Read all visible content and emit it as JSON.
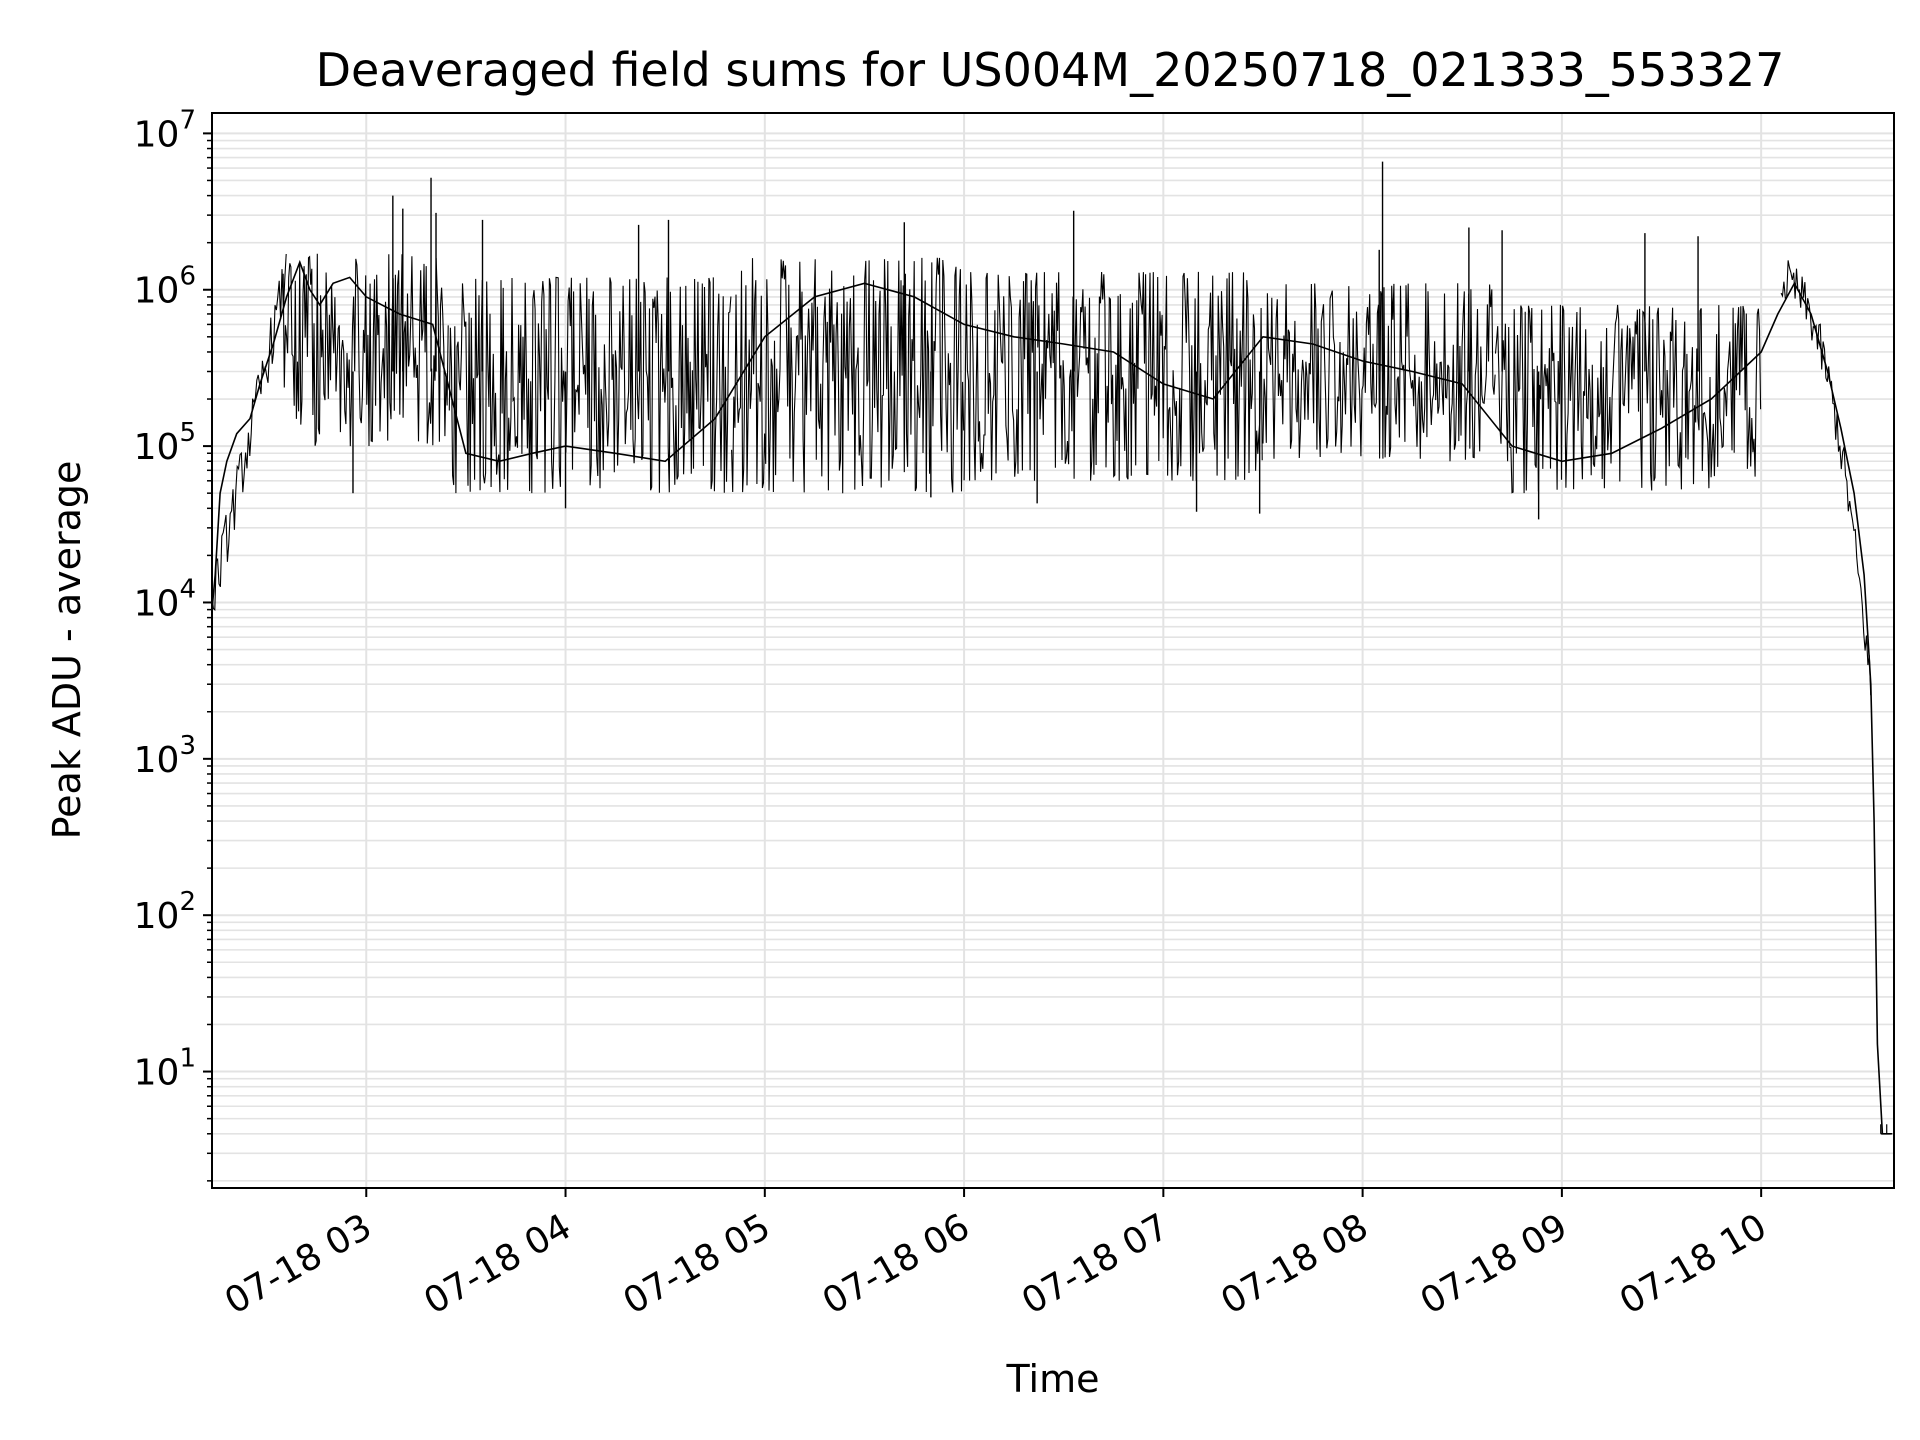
{
  "chart_data": {
    "type": "line",
    "title": "Deaveraged field sums for US004M_20250718_021333_553327",
    "xlabel": "Time",
    "ylabel": "Peak ADU - average",
    "xscale": "time",
    "yscale": "log",
    "xlim": [
      "2025-07-18T02:13:33",
      "2025-07-18T10:40:00"
    ],
    "ylim": [
      1.8,
      13500000
    ],
    "grid": true,
    "line_color": "#000000",
    "x_ticks": [
      {
        "t": "2025-07-18T03:00",
        "label": "07-18 03"
      },
      {
        "t": "2025-07-18T04:00",
        "label": "07-18 04"
      },
      {
        "t": "2025-07-18T05:00",
        "label": "07-18 05"
      },
      {
        "t": "2025-07-18T06:00",
        "label": "07-18 06"
      },
      {
        "t": "2025-07-18T07:00",
        "label": "07-18 07"
      },
      {
        "t": "2025-07-18T08:00",
        "label": "07-18 08"
      },
      {
        "t": "2025-07-18T09:00",
        "label": "07-18 09"
      },
      {
        "t": "2025-07-18T10:00",
        "label": "07-18 10"
      }
    ],
    "y_ticks": [
      {
        "value": 10,
        "base": "10",
        "exp": "1"
      },
      {
        "value": 100,
        "base": "10",
        "exp": "2"
      },
      {
        "value": 1000,
        "base": "10",
        "exp": "3"
      },
      {
        "value": 10000,
        "base": "10",
        "exp": "4"
      },
      {
        "value": 100000,
        "base": "10",
        "exp": "5"
      },
      {
        "value": 1000000,
        "base": "10",
        "exp": "6"
      },
      {
        "value": 10000000,
        "base": "10",
        "exp": "7"
      }
    ],
    "series": [
      {
        "x": [
          "2025-07-18T02:13:33",
          "2025-07-18T02:14:30",
          "2025-07-18T02:16:00",
          "2025-07-18T02:18:00",
          "2025-07-18T02:21:00",
          "2025-07-18T02:25:00",
          "2025-07-18T02:28:00",
          "2025-07-18T02:32:00",
          "2025-07-18T02:36:00",
          "2025-07-18T02:40:00",
          "2025-07-18T02:43:00",
          "2025-07-18T02:46:00",
          "2025-07-18T02:50:00",
          "2025-07-18T02:55:00",
          "2025-07-18T03:00:00",
          "2025-07-18T03:10:00",
          "2025-07-18T03:20:00",
          "2025-07-18T03:30:00",
          "2025-07-18T03:40:00",
          "2025-07-18T03:50:00",
          "2025-07-18T04:00:00",
          "2025-07-18T04:15:00",
          "2025-07-18T04:30:00",
          "2025-07-18T04:45:00",
          "2025-07-18T05:00:00",
          "2025-07-18T05:15:00",
          "2025-07-18T05:30:00",
          "2025-07-18T05:45:00",
          "2025-07-18T06:00:00",
          "2025-07-18T06:15:00",
          "2025-07-18T06:30:00",
          "2025-07-18T06:45:00",
          "2025-07-18T07:00:00",
          "2025-07-18T07:15:00",
          "2025-07-18T07:30:00",
          "2025-07-18T07:45:00",
          "2025-07-18T08:00:00",
          "2025-07-18T08:15:00",
          "2025-07-18T08:30:00",
          "2025-07-18T08:45:00",
          "2025-07-18T09:00:00",
          "2025-07-18T09:15:00",
          "2025-07-18T09:30:00",
          "2025-07-18T09:45:00",
          "2025-07-18T10:00:00",
          "2025-07-18T10:05:00",
          "2025-07-18T10:10:00",
          "2025-07-18T10:15:00",
          "2025-07-18T10:20:00",
          "2025-07-18T10:24:00",
          "2025-07-18T10:28:00",
          "2025-07-18T10:31:00",
          "2025-07-18T10:33:00",
          "2025-07-18T10:34:00",
          "2025-07-18T10:35:00",
          "2025-07-18T10:36:30",
          "2025-07-18T10:39:00"
        ],
        "y": [
          9000,
          15000,
          50000,
          80000,
          120000,
          150000,
          250000,
          450000,
          900000,
          1500000,
          1000000,
          800000,
          1100000,
          1200000,
          900000,
          700000,
          600000,
          90000,
          80000,
          90000,
          100000,
          90000,
          80000,
          150000,
          500000,
          900000,
          1100000,
          900000,
          600000,
          500000,
          450000,
          400000,
          250000,
          200000,
          500000,
          450000,
          350000,
          300000,
          250000,
          100000,
          80000,
          90000,
          130000,
          200000,
          400000,
          700000,
          1100000,
          700000,
          300000,
          130000,
          50000,
          15000,
          3000,
          400,
          15,
          4,
          4
        ]
      }
    ],
    "bands": [
      {
        "x0": "2025-07-18T02:35:00",
        "x1": "2025-07-18T03:25:00",
        "min": 100000,
        "max": 1700000
      },
      {
        "x0": "2025-07-18T03:25:00",
        "x1": "2025-07-18T04:50:00",
        "min": 50000,
        "max": 1200000
      },
      {
        "x0": "2025-07-18T04:50:00",
        "x1": "2025-07-18T06:00:00",
        "min": 50000,
        "max": 1600000
      },
      {
        "x0": "2025-07-18T06:00:00",
        "x1": "2025-07-18T07:30:00",
        "min": 60000,
        "max": 1300000
      },
      {
        "x0": "2025-07-18T07:30:00",
        "x1": "2025-07-18T08:40:00",
        "min": 80000,
        "max": 1100000
      },
      {
        "x0": "2025-07-18T08:40:00",
        "x1": "2025-07-18T10:00:00",
        "min": 50000,
        "max": 800000
      }
    ],
    "spikes": [
      {
        "t": "2025-07-18T02:56:00",
        "value": 50000
      },
      {
        "t": "2025-07-18T03:08:00",
        "value": 4000000
      },
      {
        "t": "2025-07-18T03:11:00",
        "value": 3300000
      },
      {
        "t": "2025-07-18T03:19:30",
        "value": 5200000
      },
      {
        "t": "2025-07-18T03:21:00",
        "value": 3100000
      },
      {
        "t": "2025-07-18T03:35:00",
        "value": 2800000
      },
      {
        "t": "2025-07-18T04:00:00",
        "value": 40000
      },
      {
        "t": "2025-07-18T04:22:00",
        "value": 2600000
      },
      {
        "t": "2025-07-18T04:31:00",
        "value": 2800000
      },
      {
        "t": "2025-07-18T05:42:00",
        "value": 2700000
      },
      {
        "t": "2025-07-18T05:50:00",
        "value": 47000
      },
      {
        "t": "2025-07-18T06:22:00",
        "value": 43000
      },
      {
        "t": "2025-07-18T06:33:00",
        "value": 3200000
      },
      {
        "t": "2025-07-18T07:10:00",
        "value": 38000
      },
      {
        "t": "2025-07-18T07:29:00",
        "value": 37000
      },
      {
        "t": "2025-07-18T08:06:00",
        "value": 6600000
      },
      {
        "t": "2025-07-18T08:05:00",
        "value": 1800000
      },
      {
        "t": "2025-07-18T08:32:00",
        "value": 2500000
      },
      {
        "t": "2025-07-18T08:42:00",
        "value": 2400000
      },
      {
        "t": "2025-07-18T08:53:00",
        "value": 34000
      },
      {
        "t": "2025-07-18T09:25:00",
        "value": 2300000
      },
      {
        "t": "2025-07-18T09:41:00",
        "value": 2200000
      }
    ]
  }
}
